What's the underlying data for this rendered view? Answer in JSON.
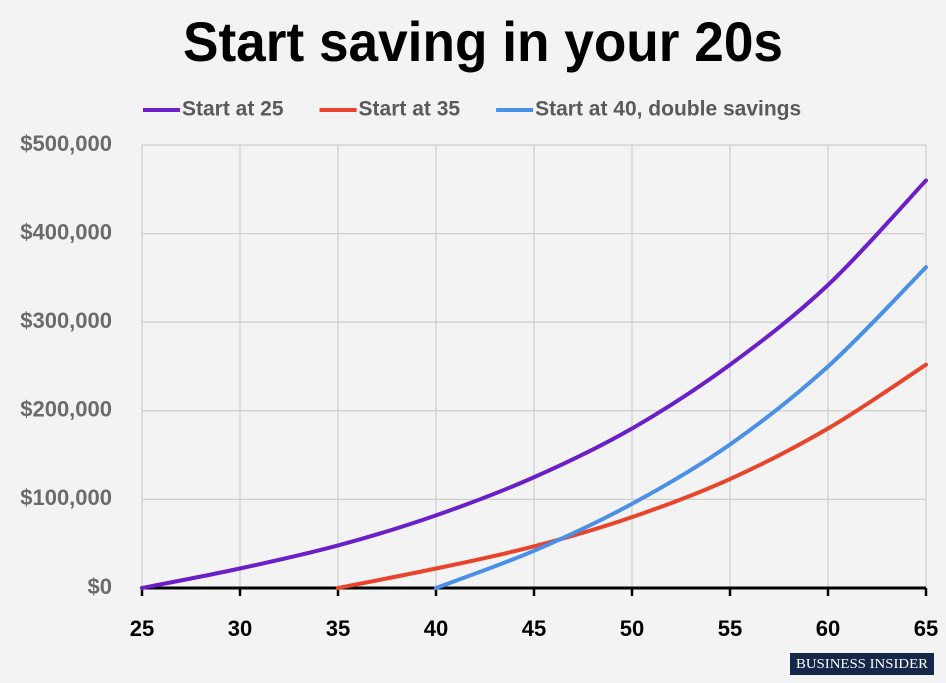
{
  "chart_data": {
    "type": "line",
    "title": "Start saving in your 20s",
    "x": [
      25,
      30,
      35,
      40,
      45,
      50,
      55,
      60,
      65
    ],
    "series": [
      {
        "name": "Start at 25",
        "color": "#6a1fc8",
        "values": [
          0,
          22000,
          48000,
          82000,
          125000,
          180000,
          252000,
          342000,
          460000
        ]
      },
      {
        "name": "Start at 35",
        "color": "#e8432b",
        "values": [
          null,
          null,
          0,
          22000,
          47000,
          80000,
          123000,
          180000,
          252000
        ]
      },
      {
        "name": "Start at 40, double savings",
        "color": "#4a90e8",
        "values": [
          null,
          null,
          null,
          0,
          42000,
          95000,
          162000,
          250000,
          362000
        ]
      }
    ],
    "xlim": [
      25,
      65
    ],
    "xticks": [
      25,
      30,
      35,
      40,
      45,
      50,
      55,
      60,
      65
    ],
    "ylim": [
      0,
      500000
    ],
    "yticks": [
      {
        "value": 0,
        "label": "$0"
      },
      {
        "value": 100000,
        "label": "$100,000"
      },
      {
        "value": 200000,
        "label": "$200,000"
      },
      {
        "value": 300000,
        "label": "$300,000"
      },
      {
        "value": 400000,
        "label": "$400,000"
      },
      {
        "value": 500000,
        "label": "$500,000"
      }
    ],
    "grid": true,
    "legend": "top",
    "source": "BUSINESS INSIDER"
  }
}
